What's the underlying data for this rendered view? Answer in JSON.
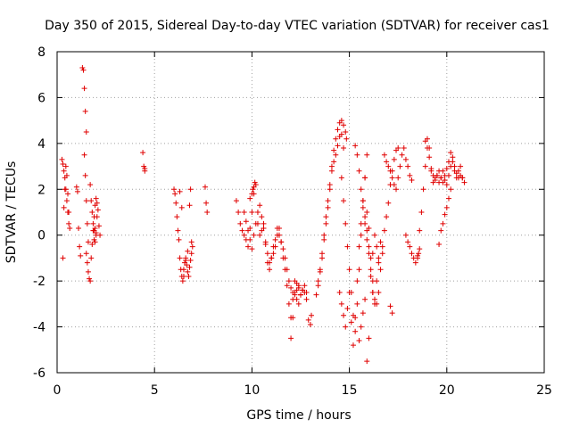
{
  "chart_data": {
    "type": "scatter",
    "title": "Day 350 of 2015, Sidereal Day-to-day VTEC variation (SDTVAR) for receiver cas1",
    "xlabel": "GPS time / hours",
    "ylabel": "SDTVAR / TECUs",
    "xlim": [
      0,
      25
    ],
    "ylim": [
      -6,
      8
    ],
    "xticks": [
      0,
      5,
      10,
      15,
      20,
      25
    ],
    "yticks": [
      -6,
      -4,
      -2,
      0,
      2,
      4,
      6,
      8
    ],
    "xtick_labels": [
      "0",
      "5",
      "10",
      "15",
      "20",
      "25"
    ],
    "ytick_labels": [
      "-6",
      "-4",
      "-2",
      "0",
      "2",
      "4",
      "6",
      "8"
    ],
    "grid": true,
    "marker": "+",
    "color": "#e00000",
    "series": [
      {
        "name": "cas1 SDTVAR",
        "x": [
          0.25,
          0.3,
          0.35,
          0.4,
          0.45,
          0.5,
          0.55,
          0.6,
          0.3,
          0.35,
          0.4,
          0.45,
          0.5,
          0.55,
          0.6,
          0.65,
          1.0,
          1.05,
          1.1,
          1.15,
          1.2,
          1.3,
          1.35,
          1.4,
          1.45,
          1.5,
          1.4,
          1.45,
          1.5,
          1.55,
          1.6,
          1.5,
          1.55,
          1.6,
          1.65,
          1.7,
          1.75,
          1.8,
          1.85,
          1.9,
          1.95,
          2.0,
          2.05,
          2.1,
          2.15,
          2.2,
          1.7,
          1.75,
          1.8,
          1.85,
          1.9,
          1.95,
          2.0,
          2.05,
          1.9,
          1.95,
          2.0,
          4.4,
          4.45,
          4.5,
          4.5,
          6.0,
          6.05,
          6.1,
          6.15,
          6.2,
          6.25,
          6.3,
          6.35,
          6.4,
          6.45,
          6.5,
          6.55,
          6.6,
          6.65,
          6.7,
          6.75,
          6.8,
          6.85,
          6.9,
          6.95,
          6.3,
          6.4,
          6.5,
          6.6,
          6.7,
          6.8,
          6.85,
          6.9,
          7.6,
          7.65,
          7.7,
          9.2,
          9.3,
          9.4,
          9.5,
          9.6,
          9.7,
          9.8,
          9.9,
          10.0,
          10.1,
          10.2,
          10.3,
          10.4,
          10.5,
          10.6,
          10.7,
          10.8,
          10.9,
          11.0,
          11.1,
          11.2,
          11.3,
          11.4,
          11.5,
          11.6,
          11.7,
          11.8,
          11.9,
          12.0,
          12.1,
          12.2,
          12.3,
          12.4,
          12.5,
          12.6,
          12.7,
          12.8,
          9.6,
          9.7,
          9.8,
          9.9,
          10.0,
          10.1,
          10.2,
          10.3,
          10.4,
          10.5,
          10.6,
          10.7,
          10.8,
          10.9,
          11.0,
          11.1,
          11.2,
          11.3,
          11.4,
          11.5,
          11.6,
          11.7,
          11.8,
          11.9,
          12.0,
          12.1,
          12.2,
          12.3,
          12.4,
          12.5,
          9.9,
          10.0,
          10.05,
          10.1,
          10.15,
          12.0,
          12.1,
          12.2,
          12.3,
          12.4,
          12.5,
          12.6,
          12.7,
          12.8,
          12.9,
          13.0,
          13.05,
          13.3,
          13.4,
          13.5,
          13.6,
          13.7,
          13.8,
          13.9,
          14.0,
          14.1,
          14.2,
          14.3,
          14.4,
          14.5,
          14.6,
          14.7,
          14.8,
          14.85,
          13.4,
          13.5,
          13.6,
          13.7,
          13.8,
          13.9,
          14.0,
          14.1,
          14.2,
          14.3,
          14.4,
          14.5,
          14.6,
          14.7,
          14.5,
          14.6,
          14.7,
          14.8,
          14.9,
          15.0,
          15.1,
          15.2,
          15.3,
          15.4,
          15.5,
          15.6,
          15.7,
          15.8,
          15.9,
          16.0,
          16.1,
          16.2,
          16.3,
          16.4,
          16.5,
          16.6,
          16.7,
          14.6,
          14.7,
          14.8,
          14.9,
          15.0,
          15.1,
          15.2,
          15.3,
          15.4,
          15.5,
          15.6,
          15.7,
          15.8,
          15.9,
          16.0,
          16.1,
          16.2,
          16.3,
          16.4,
          16.5,
          15.3,
          15.4,
          15.5,
          15.6,
          15.7,
          15.8,
          15.9,
          16.0,
          16.1,
          16.2,
          15.5,
          15.6,
          15.7,
          15.8,
          15.9,
          16.0,
          15.8,
          15.9,
          16.2,
          16.3,
          16.4,
          16.5,
          16.6,
          16.7,
          16.8,
          16.9,
          17.0,
          17.1,
          17.2,
          17.3,
          17.4,
          17.5,
          16.8,
          16.9,
          17.0,
          17.1,
          17.2,
          17.3,
          17.4,
          17.5,
          17.6,
          17.7,
          17.8,
          17.9,
          18.0,
          18.1,
          18.2,
          17.9,
          18.0,
          18.1,
          18.2,
          18.3,
          18.4,
          18.5,
          18.6,
          18.7,
          18.8,
          18.9,
          19.0,
          19.1,
          19.2,
          19.3,
          19.4,
          19.5,
          19.6,
          19.7,
          19.8,
          19.9,
          20.0,
          20.1,
          20.2,
          20.3,
          20.4,
          20.5,
          20.6,
          20.7,
          20.8,
          20.9,
          18.9,
          19.0,
          19.1,
          19.2,
          19.3,
          19.4,
          19.5,
          19.6,
          19.7,
          19.8,
          19.9,
          20.0,
          20.1,
          20.2,
          20.3,
          20.4,
          20.5,
          20.6,
          20.7,
          20.8,
          17.1,
          17.2,
          18.5,
          18.55,
          18.6,
          19.6,
          19.7,
          19.8,
          19.9,
          20.0,
          20.1,
          20.2
        ],
        "y": [
          3.3,
          3.1,
          2.8,
          2.5,
          2.0,
          1.5,
          1.0,
          0.5,
          -1.0,
          1.2,
          2.0,
          3.0,
          2.6,
          1.8,
          1.0,
          0.3,
          2.1,
          1.9,
          0.3,
          -0.5,
          -0.9,
          7.3,
          7.2,
          6.4,
          5.4,
          4.5,
          3.5,
          2.6,
          1.5,
          0.5,
          -0.3,
          -0.8,
          -1.2,
          -1.6,
          -1.9,
          -2.0,
          -1.0,
          -0.4,
          0.2,
          0.8,
          1.3,
          1.6,
          1.4,
          1.1,
          0.4,
          0.0,
          2.2,
          1.5,
          1.0,
          0.5,
          0.2,
          -0.3,
          0.1,
          0.8,
          -0.2,
          0.3,
          0.0,
          3.6,
          3.0,
          2.8,
          2.9,
          2.0,
          1.8,
          1.4,
          0.8,
          0.2,
          -0.2,
          -1.0,
          -1.5,
          -1.8,
          -2.0,
          -1.5,
          -1.2,
          -1.0,
          -1.3,
          -1.6,
          -1.8,
          -1.4,
          -1.1,
          -0.8,
          -0.5,
          1.9,
          1.2,
          -1.8,
          -1.1,
          -0.7,
          1.3,
          2.0,
          -0.3,
          2.1,
          1.4,
          1.0,
          1.5,
          1.0,
          0.5,
          0.2,
          0.0,
          -0.2,
          -0.5,
          0.3,
          1.0,
          1.8,
          2.2,
          0.5,
          0.0,
          0.2,
          0.5,
          -0.3,
          -0.8,
          -1.2,
          -1.0,
          -0.8,
          -0.5,
          0.0,
          0.3,
          -0.3,
          -0.6,
          -1.0,
          -1.5,
          -2.0,
          -2.3,
          -2.5,
          -2.6,
          -2.8,
          -3.0,
          -2.6,
          -2.4,
          -2.5,
          -2.8,
          1.0,
          0.6,
          0.2,
          -0.2,
          -0.6,
          0.0,
          0.5,
          1.0,
          1.3,
          0.8,
          0.3,
          -0.4,
          -1.2,
          -1.5,
          -1.0,
          -0.5,
          -0.2,
          0.3,
          0.0,
          -0.3,
          -1.0,
          -1.5,
          -2.2,
          -3.0,
          -3.6,
          -2.8,
          -2.0,
          -2.4,
          -2.2,
          -2.6,
          1.6,
          1.8,
          2.0,
          2.1,
          2.3,
          -4.5,
          -3.6,
          -2.5,
          -2.1,
          -2.3,
          -2.6,
          -2.4,
          -2.2,
          -2.5,
          -3.7,
          -3.9,
          -3.5,
          -2.6,
          -2.2,
          -1.5,
          -0.8,
          0.0,
          0.8,
          1.5,
          2.2,
          3.0,
          3.7,
          4.2,
          4.6,
          4.9,
          5.0,
          4.8,
          4.5,
          4.2,
          -2.0,
          -1.6,
          -1.0,
          -0.2,
          0.5,
          1.2,
          2.0,
          2.8,
          3.2,
          3.5,
          3.9,
          4.3,
          4.4,
          3.8,
          -2.5,
          -3.0,
          -3.5,
          -4.0,
          -3.2,
          -2.5,
          -3.8,
          -4.8,
          -3.6,
          -2.0,
          -0.5,
          0.5,
          1.5,
          2.5,
          3.5,
          0.3,
          -1.0,
          -2.5,
          -3.0,
          -2.0,
          -1.0,
          -0.3,
          -0.8,
          2.5,
          1.5,
          0.5,
          -0.5,
          -1.5,
          -2.5,
          -3.5,
          -4.2,
          -3.0,
          -1.5,
          0.0,
          1.5,
          2.5,
          1.0,
          -0.5,
          -1.5,
          -0.8,
          0.0,
          -0.5,
          -1.2,
          3.9,
          3.5,
          2.8,
          2.0,
          1.2,
          0.5,
          -0.2,
          -0.8,
          -1.8,
          -2.5,
          -4.6,
          -4.0,
          -3.4,
          -2.8,
          -5.5,
          -4.5,
          0.8,
          0.2,
          -2.0,
          -2.8,
          -3.0,
          -2.5,
          -1.5,
          -0.5,
          0.2,
          0.8,
          1.4,
          2.2,
          2.8,
          3.3,
          3.7,
          3.8,
          3.5,
          3.2,
          3.0,
          2.8,
          2.5,
          2.2,
          2.0,
          2.5,
          3.0,
          3.5,
          3.8,
          3.3,
          3.0,
          2.6,
          2.4,
          0.0,
          -0.3,
          -0.5,
          -0.8,
          -1.0,
          -1.2,
          -0.9,
          0.2,
          1.0,
          2.0,
          3.0,
          4.2,
          3.8,
          2.8,
          2.3,
          2.5,
          2.6,
          2.3,
          2.5,
          2.8,
          2.4,
          2.2,
          2.6,
          3.0,
          3.2,
          2.8,
          2.5,
          2.8,
          3.0,
          2.5,
          2.3,
          4.1,
          3.8,
          3.4,
          2.9,
          2.6,
          2.4,
          2.6,
          2.8,
          2.5,
          2.3,
          2.6,
          2.9,
          3.2,
          3.6,
          3.4,
          3.0,
          2.7,
          2.5,
          2.6,
          2.5,
          -3.1,
          -3.4,
          -1.0,
          -0.8,
          -0.6,
          -0.4,
          0.2,
          0.5,
          0.9,
          1.2,
          1.6,
          2.0
        ]
      }
    ]
  }
}
